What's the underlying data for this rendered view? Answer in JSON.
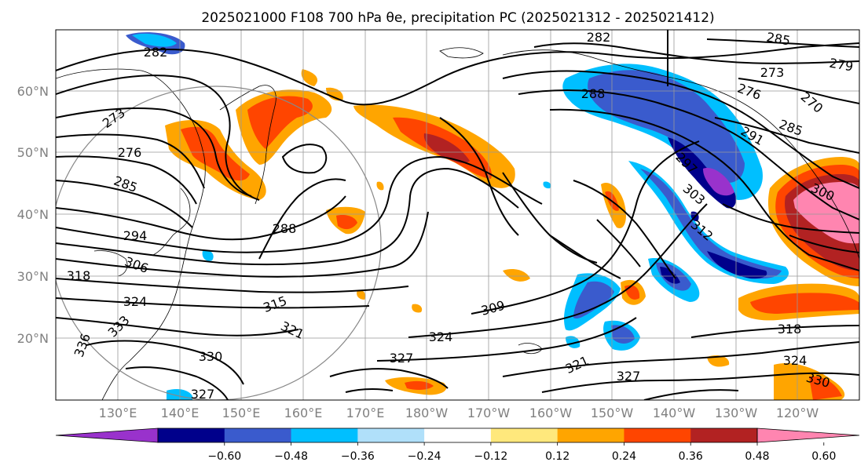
{
  "title": "2025021000 F108 700 hPa θe, precipitation PC (2025021312 - 2025021412)",
  "map": {
    "lat_labels": [
      "60°N",
      "50°N",
      "40°N",
      "30°N",
      "20°N"
    ],
    "lon_labels": [
      "130°E",
      "140°E",
      "150°E",
      "160°E",
      "170°E",
      "180°W",
      "170°W",
      "160°W",
      "150°W",
      "140°W",
      "130°W",
      "120°W"
    ],
    "contour_labels": [
      "282",
      "273",
      "276",
      "285",
      "294",
      "306",
      "318",
      "324",
      "333",
      "336",
      "330",
      "327",
      "288",
      "315",
      "321",
      "309",
      "324",
      "321",
      "327",
      "288",
      "297",
      "303",
      "312",
      "300",
      "291",
      "285",
      "270",
      "276",
      "273",
      "279",
      "285",
      "282",
      "318",
      "324",
      "330",
      "327"
    ]
  },
  "colorbar": {
    "ticks": [
      "−0.60",
      "−0.48",
      "−0.36",
      "−0.24",
      "−0.12",
      "0.12",
      "0.24",
      "0.36",
      "0.48",
      "0.60"
    ],
    "colors": [
      "#9932cc",
      "#00008b",
      "#3a5bcd",
      "#00bfff",
      "#b0e0fa",
      "#ffffff",
      "#ffe87c",
      "#ffa500",
      "#ff4500",
      "#b22222",
      "#ff85b0"
    ]
  }
}
